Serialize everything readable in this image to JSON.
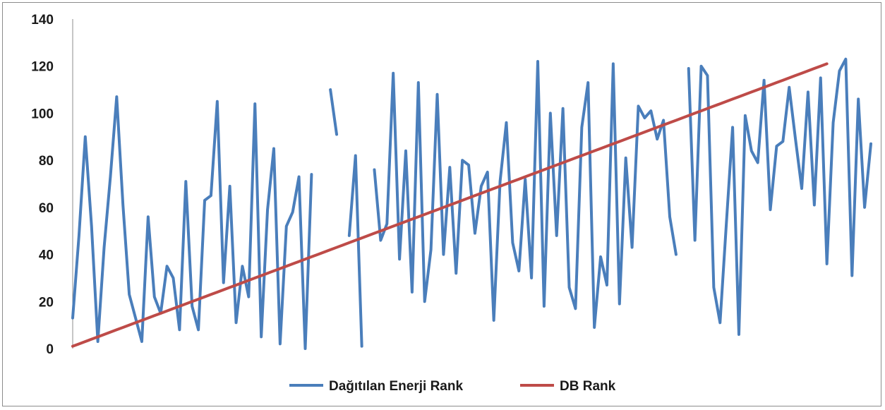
{
  "chart_data": {
    "type": "line",
    "title": "",
    "xlabel": "",
    "ylabel": "",
    "ylim": [
      0,
      140
    ],
    "yticks": [
      "0",
      "20",
      "40",
      "60",
      "80",
      "100",
      "120",
      "140"
    ],
    "grid": false,
    "legend_position": "bottom",
    "series": [
      {
        "name": "Dağıtılan Enerji Rank",
        "color": "#4a7ebb",
        "values": [
          13,
          48,
          90,
          52,
          3,
          43,
          73,
          107,
          61,
          23,
          13,
          3,
          56,
          22,
          15,
          35,
          30,
          8,
          71,
          18,
          8,
          63,
          65,
          105,
          28,
          69,
          11,
          35,
          22,
          104,
          5,
          59,
          85,
          2,
          52,
          58,
          73,
          0,
          74,
          null,
          null,
          110,
          91,
          null,
          48,
          82,
          1,
          null,
          76,
          46,
          53,
          117,
          38,
          84,
          24,
          113,
          20,
          42,
          108,
          40,
          77,
          32,
          80,
          78,
          49,
          69,
          75,
          12,
          71,
          96,
          45,
          33,
          72,
          30,
          122,
          18,
          100,
          48,
          102,
          26,
          17,
          94,
          113,
          9,
          39,
          27,
          121,
          19,
          81,
          43,
          103,
          98,
          101,
          89,
          97,
          56,
          40,
          null,
          119,
          46,
          120,
          116,
          26,
          11,
          53,
          94,
          6,
          99,
          84,
          79,
          114,
          59,
          86,
          88,
          111,
          89,
          68,
          109,
          61,
          115,
          36,
          96,
          118,
          123,
          31,
          106,
          60,
          87
        ]
      },
      {
        "name": "DB Rank",
        "color": "#be4b48",
        "values": [
          1,
          2,
          3,
          4,
          5,
          6,
          7,
          8,
          9,
          10,
          11,
          12,
          13,
          14,
          15,
          16,
          17,
          18,
          19,
          20,
          21,
          22,
          23,
          24,
          25,
          26,
          27,
          28,
          29,
          30,
          31,
          32,
          33,
          34,
          35,
          36,
          37,
          38,
          39,
          40,
          41,
          42,
          43,
          44,
          45,
          46,
          47,
          48,
          49,
          50,
          51,
          52,
          53,
          54,
          55,
          56,
          57,
          58,
          59,
          60,
          61,
          62,
          63,
          64,
          65,
          66,
          67,
          68,
          69,
          70,
          71,
          72,
          73,
          74,
          75,
          76,
          77,
          78,
          79,
          80,
          81,
          82,
          83,
          84,
          85,
          86,
          87,
          88,
          89,
          90,
          91,
          92,
          93,
          94,
          95,
          96,
          97,
          98,
          99,
          100,
          101,
          102,
          103,
          104,
          105,
          106,
          107,
          108,
          109,
          110,
          111,
          112,
          113,
          114,
          115,
          116,
          117,
          118,
          119,
          120,
          121,
          null,
          null,
          null,
          null,
          null,
          null,
          null
        ]
      }
    ]
  }
}
